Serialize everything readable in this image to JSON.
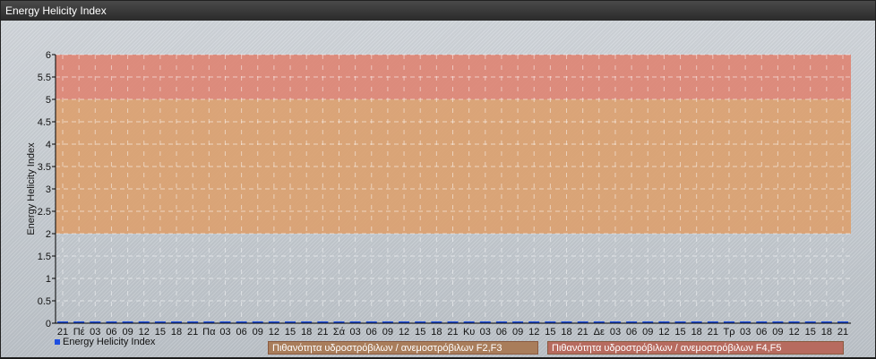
{
  "window": {
    "title": "Energy Helicity Index"
  },
  "chart_data": {
    "type": "bar",
    "title": "",
    "ylabel": "Energy Helicity Index",
    "xlabel": "",
    "ylim": [
      0,
      6
    ],
    "yticks": [
      "0",
      "0.5",
      "1",
      "1.5",
      "2",
      "2.5",
      "3",
      "3.5",
      "4",
      "4.5",
      "5",
      "5.5",
      "6"
    ],
    "grid": true,
    "categories": [
      "21",
      "Πέ",
      "03",
      "06",
      "09",
      "12",
      "15",
      "18",
      "21",
      "Πα",
      "03",
      "06",
      "09",
      "12",
      "15",
      "18",
      "21",
      "Σά",
      "03",
      "06",
      "09",
      "12",
      "15",
      "18",
      "21",
      "Κυ",
      "03",
      "06",
      "09",
      "12",
      "15",
      "18",
      "21",
      "Δε",
      "03",
      "06",
      "09",
      "12",
      "15",
      "18",
      "21",
      "Τρ",
      "03",
      "06",
      "09",
      "12",
      "15",
      "18",
      "21"
    ],
    "series": [
      {
        "name": "Energy Helicity Index",
        "color": "#1f4fe0",
        "values": [
          0,
          0,
          0,
          0,
          0,
          0,
          0,
          0,
          0,
          0,
          0,
          0,
          0,
          0,
          0,
          0,
          0,
          0,
          0,
          0,
          0,
          0,
          0,
          0,
          0,
          0,
          0,
          0,
          0,
          0,
          0,
          0,
          0,
          0,
          0,
          0,
          0,
          0,
          0,
          0,
          0,
          0,
          0,
          0,
          0,
          0,
          0,
          0,
          0
        ]
      }
    ],
    "bands": [
      {
        "from": 2,
        "to": 5,
        "color": "#dca06e",
        "label": "Πιθανότητα υδροστρόβιλων / ανεμοστρόβιλων F2,F3",
        "legend_color": "#a97d5b"
      },
      {
        "from": 5,
        "to": 6,
        "color": "#de8472",
        "label": "Πιθανότητα υδροστρόβιλων / ανεμοστρόβιλων F4,F5",
        "legend_color": "#b76b5f"
      }
    ],
    "legend": "bottom-left"
  }
}
